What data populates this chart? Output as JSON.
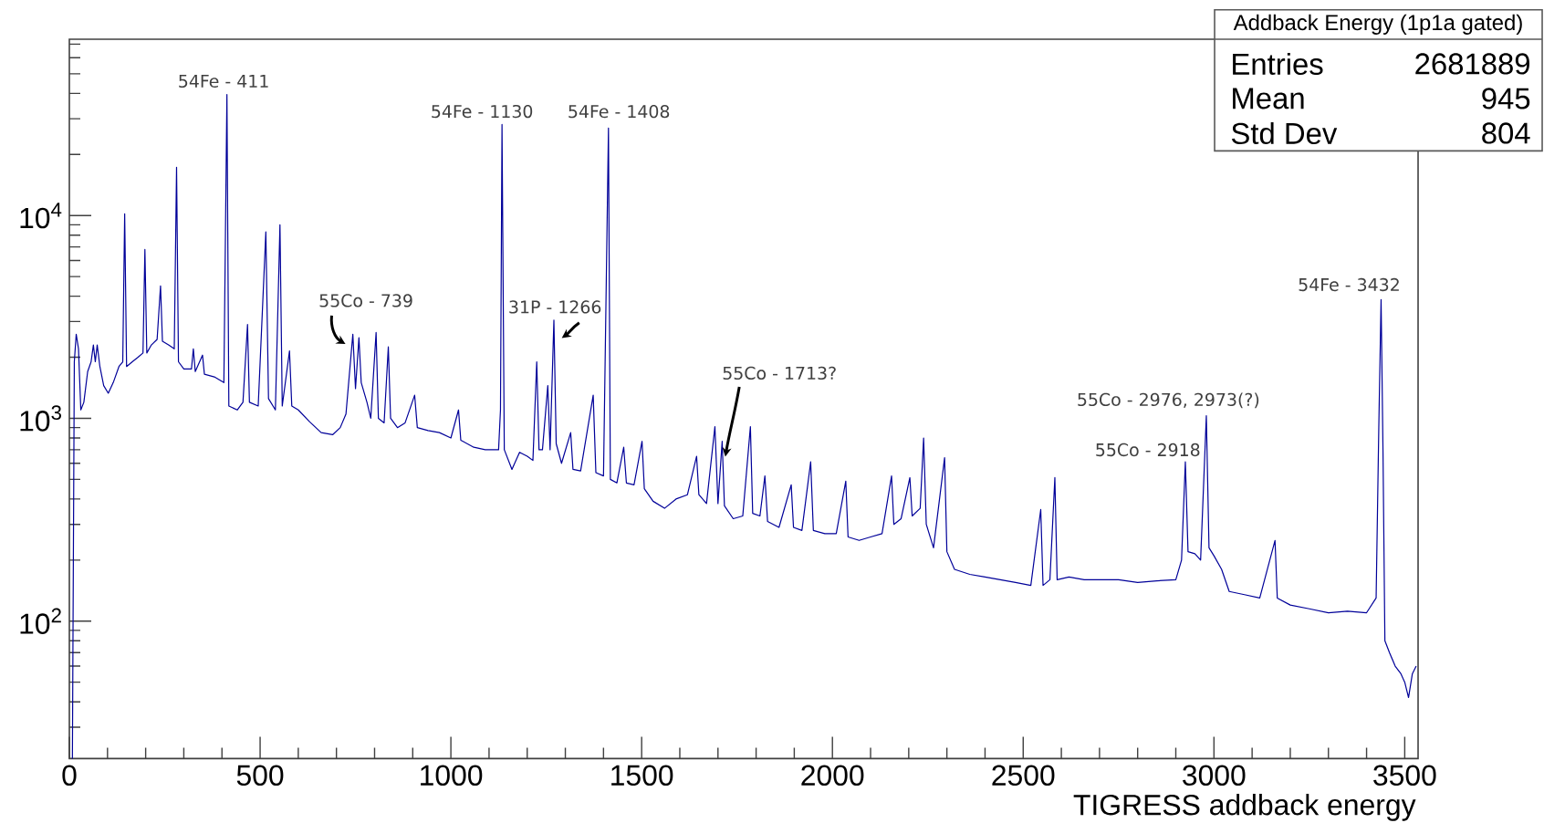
{
  "chart_data": {
    "type": "line",
    "xlabel": "TIGRESS addback energy",
    "color": "#000099",
    "log": "y",
    "xlim": [
      0,
      3535
    ],
    "ylim": [
      21,
      74000
    ],
    "xticks": [
      0,
      500,
      1000,
      1500,
      2000,
      2500,
      3000,
      3500
    ],
    "yticks": [
      {
        "value": 100,
        "label": "10$^{2}$"
      },
      {
        "value": 1000,
        "label": "10$^{3}$"
      },
      {
        "value": 10000,
        "label": "10$^{4}$"
      }
    ],
    "x": [
      8,
      13,
      18,
      24,
      30,
      38,
      48,
      57,
      63,
      68,
      73,
      80,
      90,
      102,
      115,
      130,
      140,
      145,
      150,
      165,
      180,
      193,
      198,
      203,
      215,
      230,
      239,
      244,
      260,
      275,
      281,
      286,
      300,
      320,
      325,
      330,
      349,
      354,
      380,
      405,
      413,
      418,
      440,
      455,
      467,
      472,
      495,
      515,
      522,
      540,
      552,
      558,
      577,
      583,
      600,
      630,
      660,
      690,
      710,
      725,
      743,
      750,
      759,
      765,
      780,
      790,
      804,
      810,
      825,
      836,
      842,
      860,
      880,
      905,
      912,
      940,
      970,
      1000,
      1020,
      1026,
      1060,
      1090,
      1125,
      1130,
      1134,
      1140,
      1160,
      1180,
      1200,
      1215,
      1225,
      1231,
      1240,
      1254,
      1260,
      1270,
      1276,
      1290,
      1314,
      1320,
      1340,
      1373,
      1380,
      1400,
      1413,
      1418,
      1435,
      1453,
      1460,
      1480,
      1501,
      1507,
      1530,
      1560,
      1590,
      1620,
      1644,
      1650,
      1670,
      1692,
      1700,
      1711,
      1717,
      1740,
      1765,
      1785,
      1791,
      1810,
      1823,
      1830,
      1860,
      1892,
      1898,
      1920,
      1943,
      1950,
      1980,
      2010,
      2035,
      2041,
      2070,
      2100,
      2130,
      2155,
      2161,
      2180,
      2203,
      2209,
      2230,
      2239,
      2246,
      2265,
      2294,
      2300,
      2320,
      2360,
      2400,
      2440,
      2480,
      2520,
      2546,
      2552,
      2570,
      2583,
      2589,
      2620,
      2660,
      2700,
      2750,
      2800,
      2850,
      2900,
      2915,
      2925,
      2932,
      2950,
      2965,
      2980,
      2987,
      3000,
      3020,
      3040,
      3080,
      3120,
      3160,
      3166,
      3200,
      3250,
      3300,
      3350,
      3400,
      3425,
      3432,
      3438,
      3443,
      3448,
      3460,
      3475,
      3490,
      3500,
      3510,
      3520,
      3530
    ],
    "values": [
      21,
      1900,
      2600,
      2200,
      1100,
      1200,
      1700,
      1900,
      2300,
      1900,
      2300,
      1800,
      1450,
      1330,
      1500,
      1800,
      1900,
      10200,
      1800,
      1900,
      2000,
      2100,
      6800,
      2100,
      2300,
      2450,
      4500,
      2400,
      2300,
      2200,
      17300,
      1900,
      1750,
      1750,
      2200,
      1700,
      2050,
      1650,
      1600,
      1500,
      39500,
      1150,
      1100,
      1200,
      2900,
      1200,
      1150,
      8300,
      1250,
      1100,
      9000,
      1150,
      2150,
      1150,
      1100,
      960,
      850,
      830,
      900,
      1050,
      2600,
      1400,
      2500,
      1500,
      1200,
      1000,
      2650,
      1000,
      950,
      2250,
      1000,
      900,
      950,
      1300,
      900,
      870,
      850,
      800,
      1100,
      780,
      720,
      700,
      700,
      1100,
      28100,
      700,
      560,
      680,
      650,
      620,
      1900,
      700,
      700,
      1450,
      700,
      3050,
      750,
      600,
      850,
      560,
      550,
      1300,
      540,
      520,
      27000,
      500,
      480,
      720,
      480,
      470,
      770,
      450,
      390,
      360,
      400,
      420,
      650,
      420,
      380,
      910,
      380,
      770,
      370,
      320,
      330,
      910,
      340,
      330,
      520,
      310,
      290,
      470,
      290,
      280,
      610,
      280,
      270,
      270,
      490,
      260,
      250,
      260,
      270,
      520,
      300,
      320,
      510,
      330,
      360,
      800,
      300,
      230,
      640,
      220,
      180,
      170,
      165,
      160,
      155,
      150,
      355,
      150,
      160,
      510,
      160,
      165,
      160,
      160,
      160,
      155,
      158,
      160,
      200,
      610,
      220,
      215,
      200,
      1030,
      230,
      210,
      180,
      140,
      135,
      130,
      250,
      130,
      120,
      115,
      110,
      112,
      110,
      130,
      900,
      3850,
      700,
      80,
      70,
      60,
      55,
      50,
      42,
      55,
      60
    ],
    "annotations": [
      {
        "text": "54Fe - 411",
        "x": 413,
        "y": 39500
      },
      {
        "text": "55Co - 739",
        "x": 743,
        "y": 2600
      },
      {
        "text": "54Fe - 1130",
        "x": 1134,
        "y": 28100
      },
      {
        "text": "31P - 1266",
        "x": 1270,
        "y": 3050
      },
      {
        "text": "54Fe - 1408",
        "x": 1413,
        "y": 27000
      },
      {
        "text": "55Co - 1713?",
        "x": 1711,
        "y": 770
      },
      {
        "text": "55Co - 2918",
        "x": 2925,
        "y": 610
      },
      {
        "text": "55Co - 2976, 2973(?)",
        "x": 2980,
        "y": 1030
      },
      {
        "text": "54Fe - 3432",
        "x": 3438,
        "y": 3850
      },
      "Addback Energy (1p1a gated)",
      "Entries",
      "2681889",
      "Mean",
      "945",
      "Std Dev",
      "804"
    ]
  }
}
